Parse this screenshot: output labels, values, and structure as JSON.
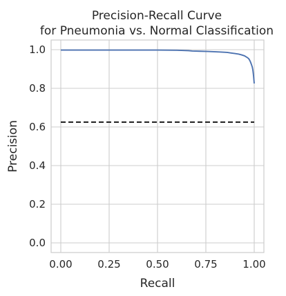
{
  "chart_data": {
    "type": "line",
    "title_lines": [
      "Precision-Recall Curve",
      "for Pneumonia vs. Normal Classification"
    ],
    "xlabel": "Recall",
    "ylabel": "Precision",
    "xlim": [
      -0.05,
      1.05
    ],
    "ylim": [
      -0.05,
      1.05
    ],
    "x_ticks": [
      0.0,
      0.25,
      0.5,
      0.75,
      1.0
    ],
    "x_tick_labels": [
      "0.00",
      "0.25",
      "0.50",
      "0.75",
      "1.00"
    ],
    "y_ticks": [
      0.0,
      0.2,
      0.4,
      0.6,
      0.8,
      1.0
    ],
    "y_tick_labels": [
      "0.0",
      "0.2",
      "0.4",
      "0.6",
      "0.8",
      "1.0"
    ],
    "grid": true,
    "series": [
      {
        "style": "solid",
        "color": "#4c72b0",
        "x": [
          0.0,
          0.3,
          0.5,
          0.6,
          0.66,
          0.68,
          0.72,
          0.76,
          0.78,
          0.82,
          0.86,
          0.88,
          0.9,
          0.92,
          0.935,
          0.95,
          0.96,
          0.97,
          0.975,
          0.98,
          0.985,
          0.99,
          0.993,
          0.995,
          0.997,
          1.0
        ],
        "y": [
          0.998,
          0.998,
          0.998,
          0.997,
          0.995,
          0.993,
          0.992,
          0.991,
          0.99,
          0.988,
          0.986,
          0.983,
          0.98,
          0.977,
          0.973,
          0.968,
          0.962,
          0.955,
          0.948,
          0.938,
          0.925,
          0.91,
          0.895,
          0.878,
          0.86,
          0.825
        ]
      },
      {
        "style": "dashed",
        "color": "#000000",
        "x": [
          0.0,
          1.0
        ],
        "y": [
          0.625,
          0.625
        ]
      }
    ]
  }
}
